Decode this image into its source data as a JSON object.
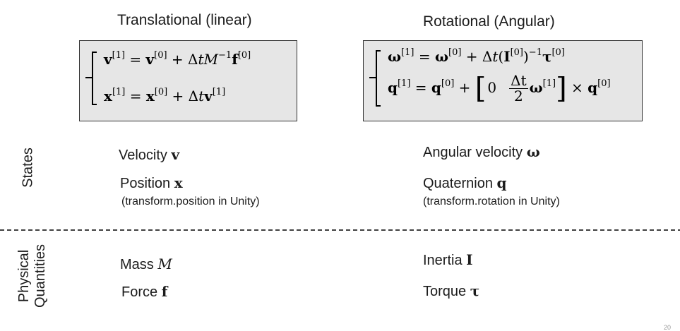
{
  "translational": {
    "title": "Translational (linear)",
    "eq1": {
      "lhs": "v",
      "sup_lhs": "[1]",
      "eq": " = ",
      "a": "v",
      "sup_a": "[0]",
      "plus": " + Δ",
      "t": "t",
      "M": "M",
      "sup_M": "−1",
      "f": "f",
      "sup_f": "[0]"
    },
    "eq2": {
      "lhs": "x",
      "sup_lhs": "[1]",
      "eq": " = ",
      "a": "x",
      "sup_a": "[0]",
      "plus": " + Δ",
      "t": "t",
      "v": "v",
      "sup_v": "[1]"
    }
  },
  "rotational": {
    "title": "Rotational (Angular)",
    "eq1": {
      "lhs": "ω",
      "sup_lhs": "[1]",
      "eq": " = ",
      "a": "ω",
      "sup_a": "[0]",
      "plus": " + Δ",
      "t": "t",
      "paren_open": "(",
      "I": "I",
      "sup_I": "[0]",
      "paren_close": ")",
      "sup_inv": "−1",
      "tau": "τ",
      "sup_tau": "[0]"
    },
    "eq2": {
      "lhs": "q",
      "sup_lhs": "[1]",
      "eq": " = ",
      "a": "q",
      "sup_a": "[0]",
      "plus": " + ",
      "bracket_open": "[",
      "zero": "0",
      "frac_num": "Δt",
      "frac_den": "2",
      "omega": "ω",
      "sup_omega": "[1]",
      "bracket_close": "]",
      "times": " × ",
      "q": "q",
      "sup_q": "[0]"
    }
  },
  "sections": {
    "states": "States",
    "physical_line1": "Physical",
    "physical_line2": "Quantities"
  },
  "states": {
    "velocity": {
      "label": "Velocity ",
      "symbol": "v"
    },
    "position": {
      "label": "Position ",
      "symbol": "x",
      "note": "(transform.position in Unity)"
    },
    "angular_velocity": {
      "label": "Angular velocity ",
      "symbol": "ω"
    },
    "quaternion": {
      "label": "Quaternion ",
      "symbol": "q",
      "note": "(transform.rotation in Unity)"
    }
  },
  "physical": {
    "mass": {
      "label": "Mass ",
      "symbol": "M"
    },
    "force": {
      "label": "Force ",
      "symbol": "f"
    },
    "inertia": {
      "label": "Inertia ",
      "symbol": "I"
    },
    "torque": {
      "label": "Torque ",
      "symbol": "τ"
    }
  },
  "page_number": "20",
  "colors": {
    "box_fill": "#e6e6e6",
    "box_border": "#333333",
    "divider": "#000000"
  }
}
